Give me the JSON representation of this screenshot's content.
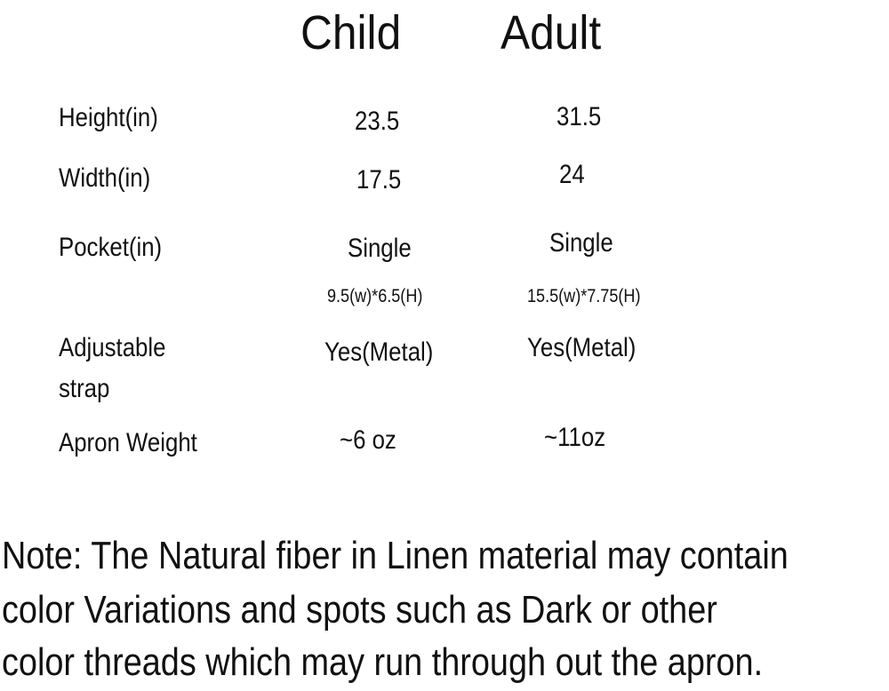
{
  "columns": [
    "Child",
    "Adult"
  ],
  "rows": [
    {
      "label": "Height(in)",
      "child": "23.5",
      "adult": "31.5"
    },
    {
      "label": "Width(in)",
      "child": "17.5",
      "adult": "24"
    },
    {
      "label": "Pocket(in)",
      "child": "Single",
      "adult": "Single",
      "child_detail": "9.5(w)*6.5(H)",
      "adult_detail": "15.5(w)*7.75(H)"
    },
    {
      "label_lines": [
        "Adjustable",
        "strap"
      ],
      "child": "Yes(Metal)",
      "adult": "Yes(Metal)"
    },
    {
      "label": "Apron Weight",
      "child": "~6 oz",
      "adult": "~11oz"
    }
  ],
  "note": [
    "Note: The Natural fiber in Linen material may contain",
    "color Variations and spots such as Dark or other",
    "color threads which may run through out the apron."
  ]
}
